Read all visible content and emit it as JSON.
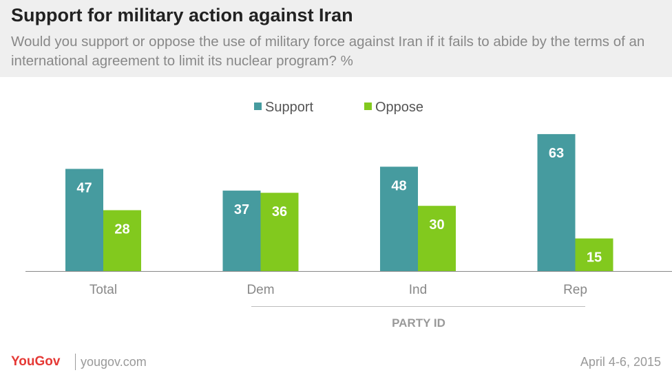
{
  "header": {
    "title": "Support for military action against Iran",
    "subtitle": "Would you support or oppose the use of military force against Iran if it fails to abide by the terms of an international agreement to limit its nuclear program? %"
  },
  "chart_data": {
    "type": "bar",
    "categories": [
      "Total",
      "Dem",
      "Ind",
      "Rep"
    ],
    "series": [
      {
        "name": "Support",
        "values": [
          47,
          37,
          48,
          63
        ],
        "color": "#469b9f"
      },
      {
        "name": "Oppose",
        "values": [
          28,
          36,
          30,
          15
        ],
        "color": "#82c91e"
      }
    ],
    "ylim": [
      0,
      70
    ],
    "group_label": "PARTY ID",
    "legend_position": "top-center",
    "grid": false
  },
  "footer": {
    "brand": "YouGov",
    "url": "yougov.com",
    "date": "April 4-6, 2015"
  }
}
